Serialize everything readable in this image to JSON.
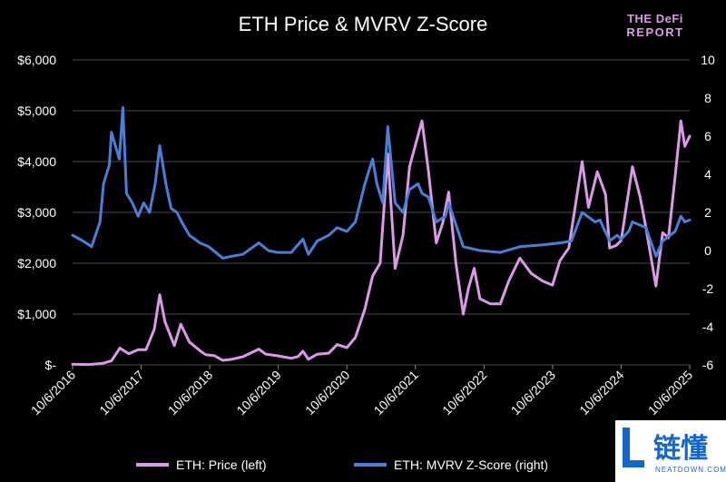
{
  "header": {
    "title": "ETH Price & MVRV Z-Score",
    "logo_line1": "THE DeFi",
    "logo_line2": "REPORT"
  },
  "watermark": {
    "text": "链懂",
    "sub": "NEATDOWN.COM"
  },
  "legend": {
    "price_label": "ETH: Price (left)",
    "mvrv_label": "ETH: MVRV Z-Score (right)"
  },
  "colors": {
    "background": "#000000",
    "price": "#d99ae6",
    "mvrv": "#4a7fd6",
    "grid": "#4a4a4a"
  },
  "chart_data": {
    "type": "line",
    "title": "ETH Price & MVRV Z-Score",
    "x_type": "date",
    "x_range": [
      "2016-10-06",
      "2025-10-06"
    ],
    "x_ticks": [
      "10/6/2016",
      "10/6/2017",
      "10/6/2018",
      "10/6/2019",
      "10/6/2020",
      "10/6/2021",
      "10/6/2022",
      "10/6/2023",
      "10/6/2024",
      "10/6/2025"
    ],
    "y_left": {
      "range": [
        0,
        6000
      ],
      "ticks": [
        0,
        1000,
        2000,
        3000,
        4000,
        5000,
        6000
      ],
      "tick_labels": [
        "$-",
        "$1,000",
        "$2,000",
        "$3,000",
        "$4,000",
        "$5,000",
        "$6,000"
      ]
    },
    "y_right": {
      "range": [
        -6,
        10
      ],
      "ticks": [
        -6,
        -4,
        -2,
        0,
        2,
        4,
        6,
        8,
        10
      ],
      "tick_labels": [
        "-6",
        "-4",
        "-2",
        "0",
        "2",
        "4",
        "6",
        "8",
        "10"
      ]
    },
    "grid": true,
    "legend_position": "bottom",
    "series": [
      {
        "name": "ETH: Price (left)",
        "axis": "left",
        "color": "#d99ae6",
        "x": [
          "2016-10-06",
          "2017-01-01",
          "2017-03-15",
          "2017-05-01",
          "2017-06-15",
          "2017-08-01",
          "2017-09-20",
          "2017-11-01",
          "2017-12-15",
          "2018-01-13",
          "2018-02-10",
          "2018-04-01",
          "2018-05-05",
          "2018-06-20",
          "2018-08-15",
          "2018-09-15",
          "2018-11-01",
          "2018-12-15",
          "2019-02-01",
          "2019-04-01",
          "2019-06-25",
          "2019-08-01",
          "2019-10-01",
          "2019-12-15",
          "2020-01-20",
          "2020-02-15",
          "2020-03-15",
          "2020-05-01",
          "2020-07-01",
          "2020-08-15",
          "2020-10-06",
          "2020-11-20",
          "2021-01-10",
          "2021-02-20",
          "2021-04-01",
          "2021-05-12",
          "2021-06-20",
          "2021-08-01",
          "2021-09-05",
          "2021-11-10",
          "2021-12-15",
          "2022-01-25",
          "2022-03-01",
          "2022-04-01",
          "2022-05-10",
          "2022-06-18",
          "2022-07-15",
          "2022-08-15",
          "2022-09-15",
          "2022-11-10",
          "2023-01-01",
          "2023-02-15",
          "2023-04-15",
          "2023-06-15",
          "2023-08-15",
          "2023-10-06",
          "2023-11-15",
          "2024-01-01",
          "2024-03-12",
          "2024-04-15",
          "2024-06-01",
          "2024-07-15",
          "2024-08-05",
          "2024-09-10",
          "2024-10-06",
          "2024-12-05",
          "2025-01-15",
          "2025-02-15",
          "2025-04-09",
          "2025-05-15",
          "2025-06-15",
          "2025-07-20",
          "2025-08-20",
          "2025-09-10",
          "2025-10-06"
        ],
        "y": [
          13,
          8,
          30,
          80,
          330,
          220,
          300,
          300,
          700,
          1380,
          850,
          380,
          800,
          450,
          280,
          200,
          180,
          90,
          110,
          160,
          310,
          210,
          180,
          130,
          165,
          270,
          110,
          210,
          230,
          400,
          340,
          540,
          1100,
          1750,
          2000,
          4150,
          1900,
          2550,
          3900,
          4800,
          3800,
          2400,
          2800,
          3400,
          2000,
          1000,
          1500,
          1900,
          1300,
          1200,
          1200,
          1650,
          2100,
          1800,
          1650,
          1570,
          2050,
          2300,
          4000,
          3100,
          3800,
          3350,
          2300,
          2350,
          2450,
          3900,
          3300,
          2700,
          1550,
          2600,
          2500,
          3700,
          4800,
          4300,
          4500
        ]
      },
      {
        "name": "ETH: MVRV Z-Score (right)",
        "axis": "right",
        "color": "#4a7fd6",
        "x": [
          "2016-10-06",
          "2016-12-01",
          "2017-01-15",
          "2017-03-01",
          "2017-03-20",
          "2017-04-20",
          "2017-05-01",
          "2017-06-12",
          "2017-07-01",
          "2017-07-20",
          "2017-08-20",
          "2017-09-20",
          "2017-10-20",
          "2017-11-20",
          "2017-12-20",
          "2018-01-13",
          "2018-02-15",
          "2018-03-15",
          "2018-04-15",
          "2018-05-10",
          "2018-06-20",
          "2018-08-15",
          "2018-10-01",
          "2018-12-15",
          "2019-02-01",
          "2019-04-01",
          "2019-06-25",
          "2019-08-15",
          "2019-10-01",
          "2019-12-15",
          "2020-02-15",
          "2020-03-15",
          "2020-05-01",
          "2020-07-01",
          "2020-08-15",
          "2020-10-06",
          "2020-11-20",
          "2021-01-10",
          "2021-02-20",
          "2021-03-15",
          "2021-04-15",
          "2021-05-12",
          "2021-06-20",
          "2021-08-01",
          "2021-09-05",
          "2021-10-20",
          "2021-11-10",
          "2021-12-15",
          "2022-01-25",
          "2022-03-15",
          "2022-04-01",
          "2022-06-18",
          "2022-09-15",
          "2023-01-01",
          "2023-04-15",
          "2023-08-15",
          "2023-11-15",
          "2024-01-15",
          "2024-03-12",
          "2024-05-20",
          "2024-06-15",
          "2024-08-05",
          "2024-09-15",
          "2024-10-06",
          "2024-11-15",
          "2024-12-05",
          "2025-02-15",
          "2025-04-09",
          "2025-05-15",
          "2025-07-20",
          "2025-08-20",
          "2025-09-10",
          "2025-10-06"
        ],
        "y": [
          0.8,
          0.5,
          0.2,
          1.5,
          3.5,
          4.5,
          6.2,
          4.8,
          7.5,
          3.0,
          2.5,
          1.8,
          2.5,
          2.0,
          3.5,
          5.5,
          3.5,
          2.2,
          2.0,
          1.5,
          0.8,
          0.4,
          0.2,
          -0.4,
          -0.3,
          -0.2,
          0.4,
          0.0,
          -0.1,
          -0.1,
          0.6,
          -0.2,
          0.5,
          0.8,
          1.2,
          1.0,
          1.5,
          3.5,
          4.8,
          3.5,
          2.5,
          6.5,
          2.5,
          2.0,
          3.2,
          3.5,
          3.0,
          2.8,
          1.5,
          1.8,
          2.5,
          0.2,
          0.0,
          -0.1,
          0.2,
          0.3,
          0.4,
          0.5,
          2.0,
          1.5,
          1.6,
          0.5,
          0.8,
          0.6,
          1.0,
          1.5,
          1.2,
          -0.3,
          0.5,
          1.0,
          1.8,
          1.5,
          1.6
        ]
      }
    ]
  }
}
